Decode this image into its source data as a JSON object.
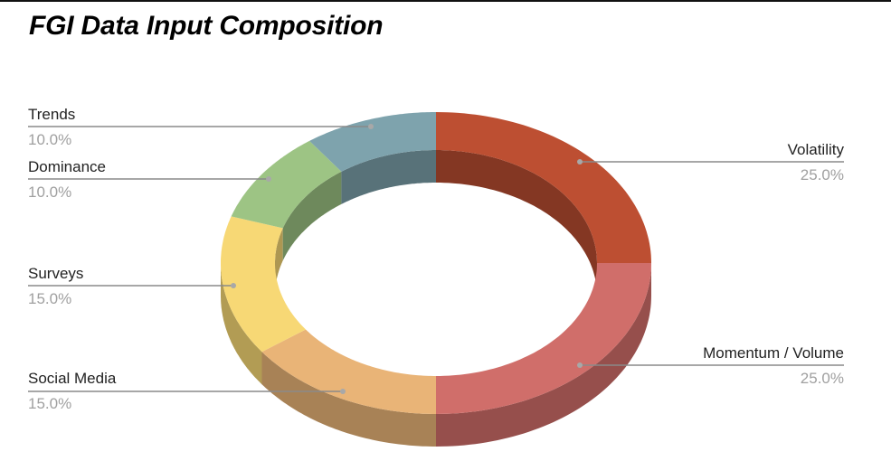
{
  "chart_data": {
    "type": "pie",
    "variant": "3d-donut",
    "title": "FGI Data Input Composition",
    "legend": "labels with leader lines",
    "series": [
      {
        "label": "Volatility",
        "value": 25.0,
        "percent_label": "25.0%",
        "color": "#bd4f32"
      },
      {
        "label": "Momentum / Volume",
        "value": 25.0,
        "percent_label": "25.0%",
        "color": "#d06e6a"
      },
      {
        "label": "Social Media",
        "value": 15.0,
        "percent_label": "15.0%",
        "color": "#e9b477"
      },
      {
        "label": "Surveys",
        "value": 15.0,
        "percent_label": "15.0%",
        "color": "#f7d875"
      },
      {
        "label": "Dominance",
        "value": 10.0,
        "percent_label": "10.0%",
        "color": "#9dc484"
      },
      {
        "label": "Trends",
        "value": 10.0,
        "percent_label": "10.0%",
        "color": "#7ea3ad"
      }
    ]
  }
}
